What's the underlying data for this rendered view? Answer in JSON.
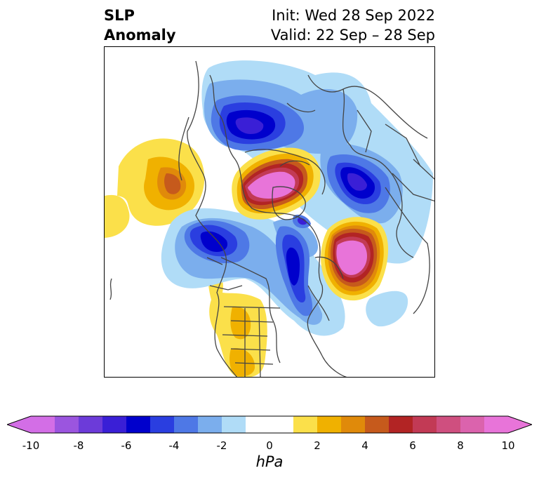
{
  "title": {
    "variable_line1": "SLP",
    "variable_line2": "Anomaly",
    "init_line": "Init: Wed 28 Sep 2022",
    "valid_line": "Valid: 22 Sep – 28 Sep"
  },
  "map": {
    "projection": "polar stereographic (north)",
    "field": "sea level pressure anomaly",
    "features": [
      {
        "kind": "low",
        "region": "northern Siberia / Arctic coast",
        "min_hpa": -7
      },
      {
        "kind": "high",
        "region": "central Arctic",
        "max_hpa": 10
      },
      {
        "kind": "low",
        "region": "Barents / Scandinavia",
        "min_hpa": -7
      },
      {
        "kind": "high",
        "region": "North Atlantic",
        "max_hpa": 10
      },
      {
        "kind": "low",
        "region": "Greenland / Labrador",
        "min_hpa": -6
      },
      {
        "kind": "low",
        "region": "Gulf of Alaska / western Canada",
        "min_hpa": -6
      },
      {
        "kind": "high",
        "region": "North Pacific",
        "max_hpa": 5
      },
      {
        "kind": "high",
        "region": "central United States",
        "max_hpa": 3
      }
    ]
  },
  "colorbar": {
    "units": "hPa",
    "tick_labels": [
      "-10",
      "-8",
      "-6",
      "-4",
      "-2",
      "0",
      "2",
      "4",
      "6",
      "8",
      "10"
    ],
    "levels": [
      -10,
      -9,
      -8,
      -7,
      -6,
      -5,
      -4,
      -3,
      -2,
      -1,
      1,
      2,
      3,
      4,
      5,
      6,
      7,
      8,
      9,
      10
    ],
    "colors": [
      "#d36ee6",
      "#9b55df",
      "#6c3bd9",
      "#3a1fd6",
      "#0000cc",
      "#2a3ee0",
      "#4e78e6",
      "#7baeed",
      "#b0dcf7",
      "#ffffff",
      "#fbe04a",
      "#f0b100",
      "#e08a0a",
      "#c65a1c",
      "#b22424",
      "#c23a55",
      "#cf4f7f",
      "#db63ad",
      "#e874d9"
    ],
    "under_color": "#d36ee6",
    "over_color": "#e874d9"
  }
}
